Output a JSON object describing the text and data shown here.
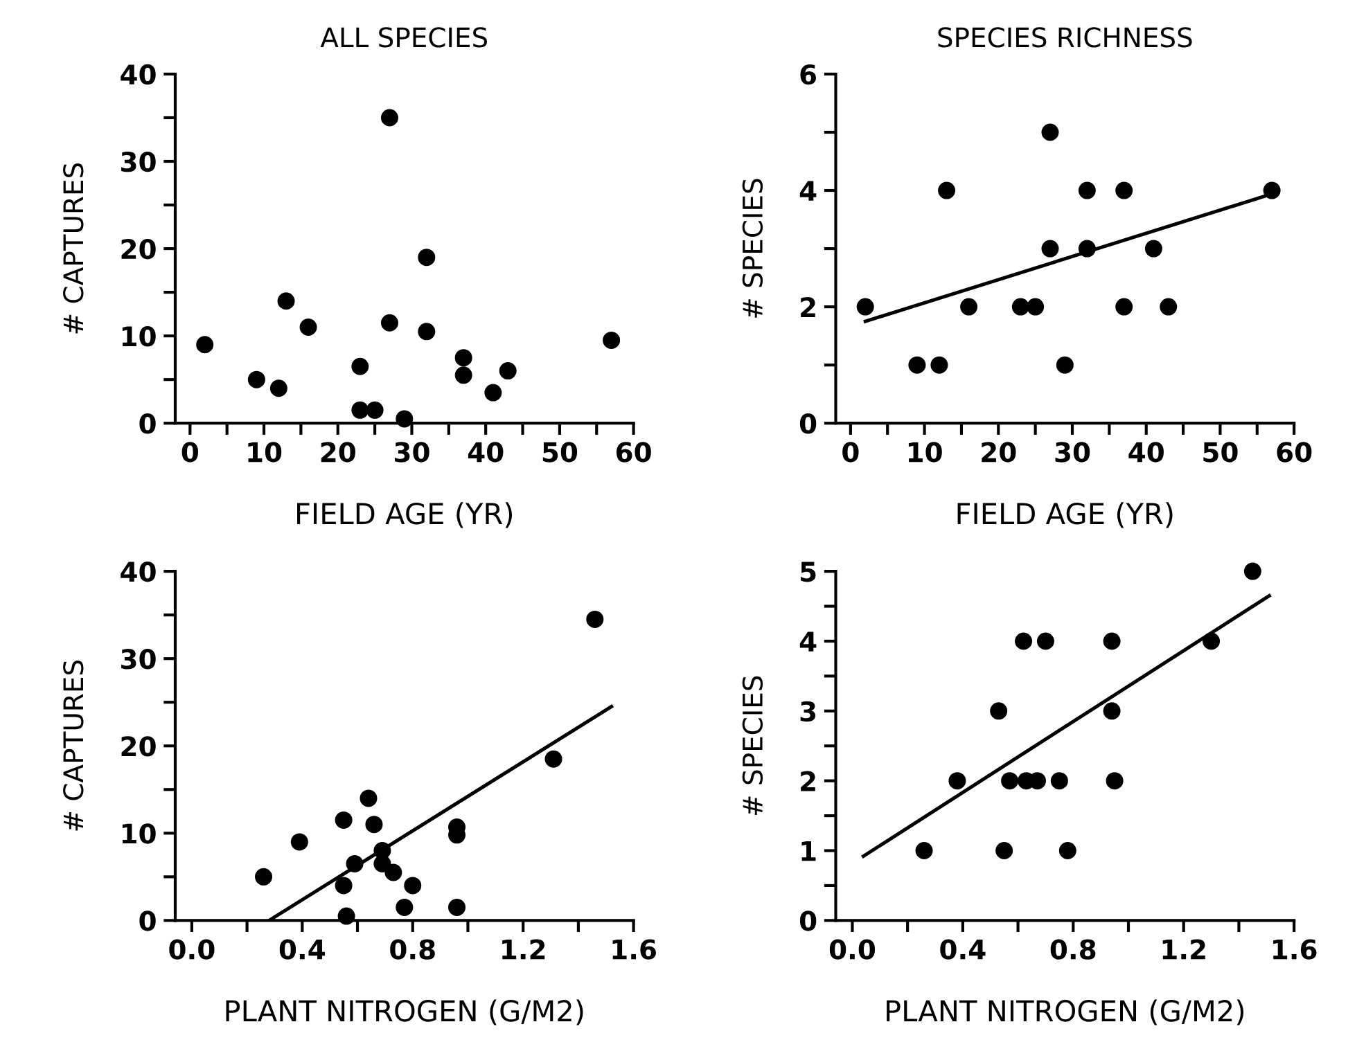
{
  "chart_data": [
    {
      "type": "scatter",
      "title": "ALL SPECIES",
      "xlabel": "FIELD AGE (YR)",
      "ylabel": "# CAPTURES",
      "marker": "circle",
      "grid": false,
      "xlim": [
        -2,
        60
      ],
      "ylim": [
        0,
        40
      ],
      "xticks": [
        0,
        {
          "value": 5,
          "label": null
        },
        10,
        {
          "value": 15,
          "label": null
        },
        20,
        {
          "value": 25,
          "label": null
        },
        30,
        {
          "value": 35,
          "label": null
        },
        40,
        {
          "value": 45,
          "label": null
        },
        50,
        {
          "value": 55,
          "label": null
        },
        60
      ],
      "yticks": [
        0,
        {
          "value": 5,
          "label": null
        },
        10,
        {
          "value": 15,
          "label": null
        },
        20,
        {
          "value": 25,
          "label": null
        },
        30,
        {
          "value": 35,
          "label": null
        },
        40
      ],
      "series": [
        {
          "color": "#000000",
          "x": [
            2,
            9,
            12,
            13,
            16,
            23,
            23,
            25,
            27,
            27,
            29,
            32,
            32,
            37,
            37,
            41,
            43,
            57
          ],
          "values": [
            9,
            5,
            4,
            14,
            11,
            6.5,
            1.5,
            1.5,
            35,
            11.5,
            0.5,
            19,
            10.5,
            7.5,
            5.5,
            3.5,
            6,
            9.5
          ]
        }
      ]
    },
    {
      "type": "scatter",
      "title": "SPECIES RICHNESS",
      "xlabel": "FIELD AGE (YR)",
      "ylabel": "# SPECIES",
      "marker": "circle",
      "grid": false,
      "xlim": [
        -2,
        60
      ],
      "ylim": [
        0,
        6
      ],
      "xticks": [
        0,
        {
          "value": 5,
          "label": null
        },
        10,
        {
          "value": 15,
          "label": null
        },
        20,
        {
          "value": 25,
          "label": null
        },
        30,
        {
          "value": 35,
          "label": null
        },
        40,
        {
          "value": 45,
          "label": null
        },
        50,
        {
          "value": 55,
          "label": null
        },
        60
      ],
      "yticks": [
        0,
        {
          "value": 1,
          "label": null
        },
        2,
        {
          "value": 3,
          "label": null
        },
        4,
        {
          "value": 5,
          "label": null
        },
        6
      ],
      "series": [
        {
          "color": "#000000",
          "x": [
            2,
            9,
            12,
            13,
            16,
            23,
            25,
            27,
            27,
            29,
            32,
            32,
            37,
            37,
            41,
            43,
            57
          ],
          "values": [
            2,
            1,
            1,
            4,
            2,
            2,
            2,
            5,
            3,
            1,
            4,
            3,
            4,
            2,
            3,
            2,
            4
          ]
        },
        {
          "type": "line",
          "marker": "none",
          "color": "#000000",
          "x": [
            2,
            56
          ],
          "values": [
            1.75,
            3.9
          ]
        }
      ]
    },
    {
      "type": "scatter",
      "xlabel": "PLANT NITROGEN (G/M2)",
      "ylabel": "# CAPTURES",
      "marker": "circle",
      "grid": false,
      "xlim": [
        -0.06,
        1.6
      ],
      "ylim": [
        0,
        40
      ],
      "xticks": [
        "0.0",
        {
          "value": 0.2,
          "label": null
        },
        0.4,
        {
          "value": 0.6,
          "label": null
        },
        0.8,
        {
          "value": 1.0,
          "label": null
        },
        1.2,
        {
          "value": 1.4,
          "label": null
        },
        1.6
      ],
      "yticks": [
        0,
        {
          "value": 5,
          "label": null
        },
        10,
        {
          "value": 15,
          "label": null
        },
        20,
        {
          "value": 25,
          "label": null
        },
        30,
        {
          "value": 35,
          "label": null
        },
        40
      ],
      "series": [
        {
          "color": "#000000",
          "x": [
            0.26,
            0.39,
            0.55,
            0.55,
            0.56,
            0.59,
            0.64,
            0.66,
            0.69,
            0.69,
            0.73,
            0.77,
            0.8,
            0.96,
            0.96,
            0.96,
            1.31,
            1.46
          ],
          "values": [
            5,
            9,
            11.5,
            4,
            0.5,
            6.5,
            14,
            11,
            8,
            6.5,
            5.5,
            1.5,
            4,
            10.7,
            9.8,
            1.5,
            18.5,
            34.5
          ]
        },
        {
          "type": "line",
          "marker": "none",
          "color": "#000000",
          "x": [
            0.28,
            1.52
          ],
          "values": [
            0,
            24.5
          ]
        }
      ]
    },
    {
      "type": "scatter",
      "xlabel": "PLANT NITROGEN (G/M2)",
      "ylabel": "# SPECIES",
      "marker": "circle",
      "grid": false,
      "xlim": [
        -0.06,
        1.6
      ],
      "ylim": [
        0,
        5
      ],
      "xticks": [
        {
          "value": 0,
          "label": "0.0"
        },
        {
          "value": 0.2,
          "label": null
        },
        0.4,
        {
          "value": 0.6,
          "label": null
        },
        0.8,
        {
          "value": 1.0,
          "label": null
        },
        1.2,
        {
          "value": 1.4,
          "label": null
        },
        1.6
      ],
      "yticks": [
        0,
        {
          "value": 0.5,
          "label": null
        },
        1,
        {
          "value": 1.5,
          "label": null
        },
        2,
        {
          "value": 2.5,
          "label": null
        },
        3,
        {
          "value": 3.5,
          "label": null
        },
        4,
        {
          "value": 4.5,
          "label": null
        },
        5
      ],
      "series": [
        {
          "color": "#000000",
          "x": [
            0.26,
            0.38,
            0.53,
            0.55,
            0.57,
            0.62,
            0.63,
            0.67,
            0.7,
            0.75,
            0.78,
            0.94,
            0.94,
            0.95,
            1.3,
            1.45
          ],
          "values": [
            1,
            2,
            3,
            1,
            2,
            4,
            2,
            2,
            4,
            2,
            1,
            4,
            3,
            2,
            4,
            5
          ]
        },
        {
          "type": "line",
          "marker": "none",
          "color": "#000000",
          "x": [
            0.04,
            1.51
          ],
          "values": [
            0.92,
            4.65
          ]
        }
      ]
    }
  ]
}
